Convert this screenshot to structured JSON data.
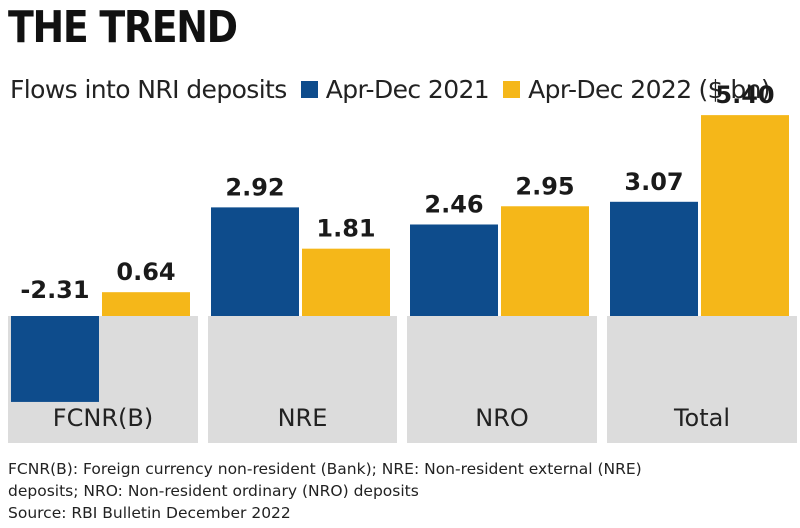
{
  "title": "THE TREND",
  "subtitle": "Flows into NRI deposits",
  "units_note": "($ bn)",
  "colors": {
    "series_2021": "#0e4c8c",
    "series_2022": "#f5b719",
    "panel_bg": "#dcdcdc"
  },
  "chart_data": {
    "type": "bar",
    "title": "THE TREND",
    "subtitle": "Flows into NRI deposits",
    "categories": [
      "FCNR(B)",
      "NRE",
      "NRO",
      "Total"
    ],
    "series": [
      {
        "name": "Apr-Dec 2021",
        "values": [
          -2.31,
          2.92,
          2.46,
          3.07
        ]
      },
      {
        "name": "Apr-Dec 2022",
        "values": [
          0.64,
          1.81,
          2.95,
          5.4
        ]
      }
    ],
    "value_labels": [
      [
        "-2.31",
        "2.92",
        "2.46",
        "3.07"
      ],
      [
        "0.64",
        "1.81",
        "2.95",
        "5.40"
      ]
    ],
    "unit": "$ bn",
    "legend_position": "top",
    "grid": false
  },
  "footnotes": [
    "FCNR(B): Foreign currency non-resident (Bank); NRE:  Non-resident external (NRE)",
    "deposits; NRO: Non-resident ordinary (NRO) deposits",
    "Source: RBI Bulletin December 2022"
  ]
}
